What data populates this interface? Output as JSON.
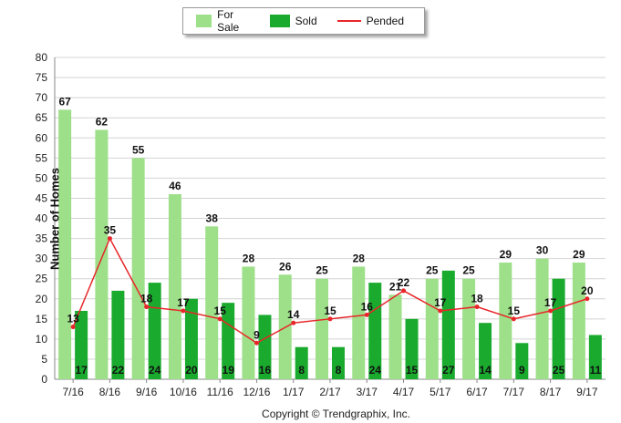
{
  "chart_data": {
    "type": "bar",
    "categories": [
      "7/16",
      "8/16",
      "9/16",
      "10/16",
      "11/16",
      "12/16",
      "1/17",
      "2/17",
      "3/17",
      "4/17",
      "5/17",
      "6/17",
      "7/17",
      "8/17",
      "9/17"
    ],
    "series": [
      {
        "name": "For Sale",
        "kind": "bar",
        "color": "#9ee08a",
        "values": [
          67,
          62,
          55,
          46,
          38,
          28,
          26,
          25,
          28,
          21,
          25,
          25,
          29,
          30,
          29
        ]
      },
      {
        "name": "Sold",
        "kind": "bar",
        "color": "#1aaa2e",
        "values": [
          17,
          22,
          24,
          20,
          19,
          16,
          8,
          8,
          24,
          15,
          27,
          14,
          9,
          25,
          11
        ]
      },
      {
        "name": "Pended",
        "kind": "line",
        "color": "#e8262a",
        "values": [
          13,
          35,
          18,
          17,
          15,
          9,
          14,
          15,
          16,
          22,
          17,
          18,
          15,
          17,
          20
        ]
      }
    ],
    "ylabel": "Number of Homes",
    "xlabel": "",
    "ylim": [
      0,
      80
    ],
    "yticks": [
      "0",
      "5",
      "10",
      "15",
      "20",
      "25",
      "30",
      "35",
      "40",
      "45",
      "50",
      "55",
      "60",
      "65",
      "70",
      "75",
      "80"
    ],
    "grid": true,
    "legend_position": "top-center"
  },
  "footer": {
    "copyright": "Copyright © Trendgraphix, Inc."
  }
}
